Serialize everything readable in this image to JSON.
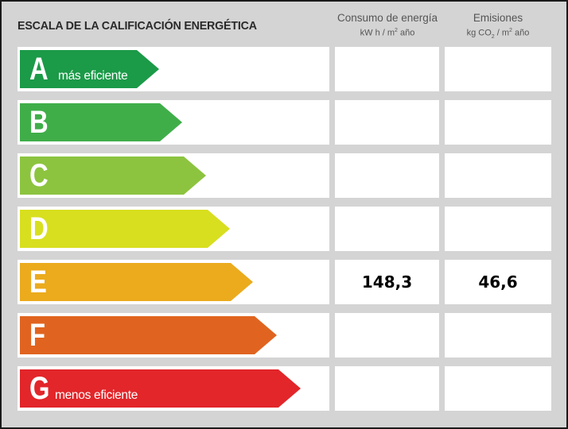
{
  "title": "ESCALA DE LA CALIFICACIÓN ENERGÉTICA",
  "columns": {
    "consumo": {
      "label": "Consumo de energía",
      "unit_main": "kW h / m",
      "unit_exp": "2",
      "unit_tail": " año"
    },
    "emisiones": {
      "label": "Emisiones",
      "unit_main": "kg CO",
      "unit_sub": "2",
      "unit_mid": " / m",
      "unit_exp": "2",
      "unit_tail": " año"
    }
  },
  "ratings": [
    {
      "letter": "A",
      "sublabel": "más eficiente",
      "color": "#1b9a48",
      "consumo": "",
      "emisiones": ""
    },
    {
      "letter": "B",
      "sublabel": "",
      "color": "#3fae49",
      "consumo": "",
      "emisiones": ""
    },
    {
      "letter": "C",
      "sublabel": "",
      "color": "#8cc43f",
      "consumo": "",
      "emisiones": ""
    },
    {
      "letter": "D",
      "sublabel": "",
      "color": "#d8df1f",
      "consumo": "",
      "emisiones": ""
    },
    {
      "letter": "E",
      "sublabel": "",
      "color": "#ebab1d",
      "consumo": "148,3",
      "emisiones": "46,6"
    },
    {
      "letter": "F",
      "sublabel": "",
      "color": "#e0641f",
      "consumo": "",
      "emisiones": ""
    },
    {
      "letter": "G",
      "sublabel": "menos eficiente",
      "color": "#e2262a",
      "consumo": "",
      "emisiones": ""
    }
  ]
}
